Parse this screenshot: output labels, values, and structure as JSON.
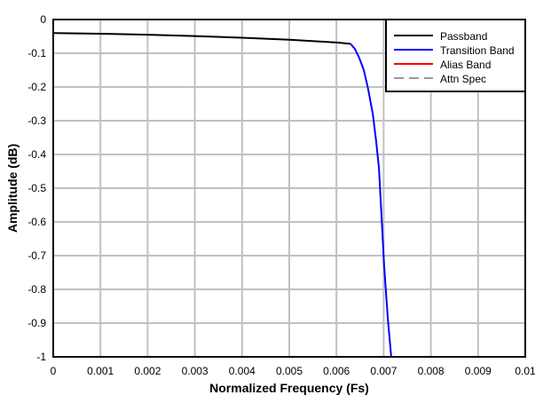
{
  "chart_data": {
    "type": "line",
    "title": "",
    "xlabel": "Normalized Frequency (Fs)",
    "ylabel": "Amplitude (dB)",
    "xlim": [
      0,
      0.01
    ],
    "ylim": [
      -1,
      0
    ],
    "xticks": [
      "0",
      "0.001",
      "0.002",
      "0.003",
      "0.004",
      "0.005",
      "0.006",
      "0.007",
      "0.008",
      "0.009",
      "0.01"
    ],
    "yticks": [
      "0",
      "-0.1",
      "-0.2",
      "-0.3",
      "-0.4",
      "-0.5",
      "-0.6",
      "-0.7",
      "-0.8",
      "-0.9",
      "-1"
    ],
    "grid": true,
    "legend_position": "top-right",
    "series": [
      {
        "name": "Passband",
        "color": "#000000",
        "dash": false,
        "x": [
          0,
          0.001,
          0.002,
          0.003,
          0.004,
          0.005,
          0.006,
          0.0063
        ],
        "y": [
          -0.04,
          -0.042,
          -0.045,
          -0.049,
          -0.054,
          -0.06,
          -0.068,
          -0.072
        ]
      },
      {
        "name": "Transition Band",
        "color": "#0000ff",
        "dash": false,
        "x": [
          0.0063,
          0.00639,
          0.00648,
          0.00658,
          0.00667,
          0.00677,
          0.00684,
          0.0069,
          0.00695,
          0.00701,
          0.00709,
          0.00716
        ],
        "y": [
          -0.072,
          -0.087,
          -0.113,
          -0.15,
          -0.205,
          -0.28,
          -0.36,
          -0.44,
          -0.57,
          -0.73,
          -0.89,
          -1.0
        ]
      },
      {
        "name": "Alias Band",
        "color": "#ff0000",
        "dash": false,
        "x": [],
        "y": []
      },
      {
        "name": "Attn Spec",
        "color": "#999999",
        "dash": true,
        "x": [],
        "y": []
      }
    ]
  }
}
